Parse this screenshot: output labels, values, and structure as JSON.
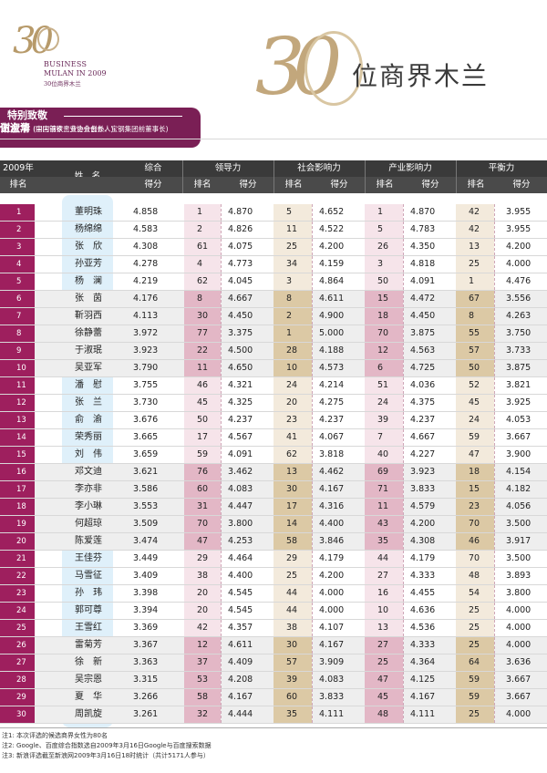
{
  "brand": {
    "small_num": "30",
    "small_line1": "BUSINESS",
    "small_line2": "MULAN IN 2009",
    "small_line3": "30位商界木兰",
    "big_num": "30",
    "big_title": "位商界木兰"
  },
  "thanks": {
    "label": "特别致敬",
    "people": [
      {
        "name": "伍淑清",
        "desc": "(国内首家合资企业创办人)"
      },
      {
        "name": "谢企华",
        "desc": "(中国钢铁工业协会会长、宝钢集团前董事长)"
      }
    ]
  },
  "header": {
    "year": "2009年",
    "rank": "排名",
    "name": "姓　名",
    "total_top": "综合",
    "total_bottom": "得分",
    "groups": [
      "领导力",
      "社会影响力",
      "产业影响力",
      "平衡力"
    ],
    "sub_rank": "排名",
    "sub_score": "得分"
  },
  "rows": [
    {
      "rank": "1",
      "name": "董明珠",
      "total": "4.858",
      "lr": "1",
      "ls": "4.870",
      "sr": "5",
      "ss": "4.652",
      "ir": "1",
      "is": "4.870",
      "br": "42",
      "bs": "3.955"
    },
    {
      "rank": "2",
      "name": "杨绵绵",
      "total": "4.583",
      "lr": "2",
      "ls": "4.826",
      "sr": "11",
      "ss": "4.522",
      "ir": "5",
      "is": "4.783",
      "br": "42",
      "bs": "3.955"
    },
    {
      "rank": "3",
      "name": "张　欣",
      "total": "4.308",
      "lr": "61",
      "ls": "4.075",
      "sr": "25",
      "ss": "4.200",
      "ir": "26",
      "is": "4.350",
      "br": "13",
      "bs": "4.200"
    },
    {
      "rank": "4",
      "name": "孙亚芳",
      "total": "4.278",
      "lr": "4",
      "ls": "4.773",
      "sr": "34",
      "ss": "4.159",
      "ir": "3",
      "is": "4.818",
      "br": "25",
      "bs": "4.000"
    },
    {
      "rank": "5",
      "name": "杨　澜",
      "total": "4.219",
      "lr": "62",
      "ls": "4.045",
      "sr": "3",
      "ss": "4.864",
      "ir": "50",
      "is": "4.091",
      "br": "1",
      "bs": "4.476"
    },
    {
      "rank": "6",
      "name": "张　茵",
      "total": "4.176",
      "lr": "8",
      "ls": "4.667",
      "sr": "8",
      "ss": "4.611",
      "ir": "15",
      "is": "4.472",
      "br": "67",
      "bs": "3.556"
    },
    {
      "rank": "7",
      "name": "靳羽西",
      "total": "4.113",
      "lr": "30",
      "ls": "4.450",
      "sr": "2",
      "ss": "4.900",
      "ir": "18",
      "is": "4.450",
      "br": "8",
      "bs": "4.263"
    },
    {
      "rank": "8",
      "name": "徐静蕾",
      "total": "3.972",
      "lr": "77",
      "ls": "3.375",
      "sr": "1",
      "ss": "5.000",
      "ir": "70",
      "is": "3.875",
      "br": "55",
      "bs": "3.750"
    },
    {
      "rank": "9",
      "name": "于淑珉",
      "total": "3.923",
      "lr": "22",
      "ls": "4.500",
      "sr": "28",
      "ss": "4.188",
      "ir": "12",
      "is": "4.563",
      "br": "57",
      "bs": "3.733"
    },
    {
      "rank": "10",
      "name": "吴亚军",
      "total": "3.790",
      "lr": "11",
      "ls": "4.650",
      "sr": "10",
      "ss": "4.573",
      "ir": "6",
      "is": "4.725",
      "br": "50",
      "bs": "3.875"
    },
    {
      "rank": "11",
      "name": "潘　慰",
      "total": "3.755",
      "lr": "46",
      "ls": "4.321",
      "sr": "24",
      "ss": "4.214",
      "ir": "51",
      "is": "4.036",
      "br": "52",
      "bs": "3.821"
    },
    {
      "rank": "12",
      "name": "张　兰",
      "total": "3.730",
      "lr": "45",
      "ls": "4.325",
      "sr": "20",
      "ss": "4.275",
      "ir": "24",
      "is": "4.375",
      "br": "45",
      "bs": "3.925"
    },
    {
      "rank": "13",
      "name": "俞　渝",
      "total": "3.676",
      "lr": "50",
      "ls": "4.237",
      "sr": "23",
      "ss": "4.237",
      "ir": "39",
      "is": "4.237",
      "br": "24",
      "bs": "4.053"
    },
    {
      "rank": "14",
      "name": "荣秀丽",
      "total": "3.665",
      "lr": "17",
      "ls": "4.567",
      "sr": "41",
      "ss": "4.067",
      "ir": "7",
      "is": "4.667",
      "br": "59",
      "bs": "3.667"
    },
    {
      "rank": "15",
      "name": "刘　伟",
      "total": "3.659",
      "lr": "59",
      "ls": "4.091",
      "sr": "62",
      "ss": "3.818",
      "ir": "40",
      "is": "4.227",
      "br": "47",
      "bs": "3.900"
    },
    {
      "rank": "16",
      "name": "邓文迪",
      "total": "3.621",
      "lr": "76",
      "ls": "3.462",
      "sr": "13",
      "ss": "4.462",
      "ir": "69",
      "is": "3.923",
      "br": "18",
      "bs": "4.154"
    },
    {
      "rank": "17",
      "name": "李亦非",
      "total": "3.586",
      "lr": "60",
      "ls": "4.083",
      "sr": "30",
      "ss": "4.167",
      "ir": "71",
      "is": "3.833",
      "br": "15",
      "bs": "4.182"
    },
    {
      "rank": "18",
      "name": "李小琳",
      "total": "3.553",
      "lr": "31",
      "ls": "4.447",
      "sr": "17",
      "ss": "4.316",
      "ir": "11",
      "is": "4.579",
      "br": "23",
      "bs": "4.056"
    },
    {
      "rank": "19",
      "name": "何超琼",
      "total": "3.509",
      "lr": "70",
      "ls": "3.800",
      "sr": "14",
      "ss": "4.400",
      "ir": "43",
      "is": "4.200",
      "br": "70",
      "bs": "3.500"
    },
    {
      "rank": "20",
      "name": "陈爱莲",
      "total": "3.474",
      "lr": "47",
      "ls": "4.253",
      "sr": "58",
      "ss": "3.846",
      "ir": "35",
      "is": "4.308",
      "br": "46",
      "bs": "3.917"
    },
    {
      "rank": "21",
      "name": "王佳芬",
      "total": "3.449",
      "lr": "29",
      "ls": "4.464",
      "sr": "29",
      "ss": "4.179",
      "ir": "44",
      "is": "4.179",
      "br": "70",
      "bs": "3.500"
    },
    {
      "rank": "22",
      "name": "马雪征",
      "total": "3.409",
      "lr": "38",
      "ls": "4.400",
      "sr": "25",
      "ss": "4.200",
      "ir": "27",
      "is": "4.333",
      "br": "48",
      "bs": "3.893"
    },
    {
      "rank": "23",
      "name": "孙　玮",
      "total": "3.398",
      "lr": "20",
      "ls": "4.545",
      "sr": "44",
      "ss": "4.000",
      "ir": "16",
      "is": "4.455",
      "br": "54",
      "bs": "3.800"
    },
    {
      "rank": "24",
      "name": "郭可尊",
      "total": "3.394",
      "lr": "20",
      "ls": "4.545",
      "sr": "44",
      "ss": "4.000",
      "ir": "10",
      "is": "4.636",
      "br": "25",
      "bs": "4.000"
    },
    {
      "rank": "25",
      "name": "王雪红",
      "total": "3.369",
      "lr": "42",
      "ls": "4.357",
      "sr": "38",
      "ss": "4.107",
      "ir": "13",
      "is": "4.536",
      "br": "25",
      "bs": "4.000"
    },
    {
      "rank": "26",
      "name": "雷菊芳",
      "total": "3.367",
      "lr": "12",
      "ls": "4.611",
      "sr": "30",
      "ss": "4.167",
      "ir": "27",
      "is": "4.333",
      "br": "25",
      "bs": "4.000"
    },
    {
      "rank": "27",
      "name": "徐　新",
      "total": "3.363",
      "lr": "37",
      "ls": "4.409",
      "sr": "57",
      "ss": "3.909",
      "ir": "25",
      "is": "4.364",
      "br": "64",
      "bs": "3.636"
    },
    {
      "rank": "28",
      "name": "吴宗恩",
      "total": "3.315",
      "lr": "53",
      "ls": "4.208",
      "sr": "39",
      "ss": "4.083",
      "ir": "47",
      "is": "4.125",
      "br": "59",
      "bs": "3.667"
    },
    {
      "rank": "29",
      "name": "夏　华",
      "total": "3.266",
      "lr": "58",
      "ls": "4.167",
      "sr": "60",
      "ss": "3.833",
      "ir": "45",
      "is": "4.167",
      "br": "59",
      "bs": "3.667"
    },
    {
      "rank": "30",
      "name": "周凯旋",
      "total": "3.261",
      "lr": "32",
      "ls": "4.444",
      "sr": "35",
      "ss": "4.111",
      "ir": "48",
      "is": "4.111",
      "br": "25",
      "bs": "4.000"
    }
  ],
  "notes": [
    "注1: 本次评选的候选商界女性为80名",
    "注2: Google、百度综合指数选自2009年3月16日Google与百度搜索数据",
    "注3: 新浪评选截至新浪网2009年3月16日18时统计（共计5171人参与）"
  ]
}
